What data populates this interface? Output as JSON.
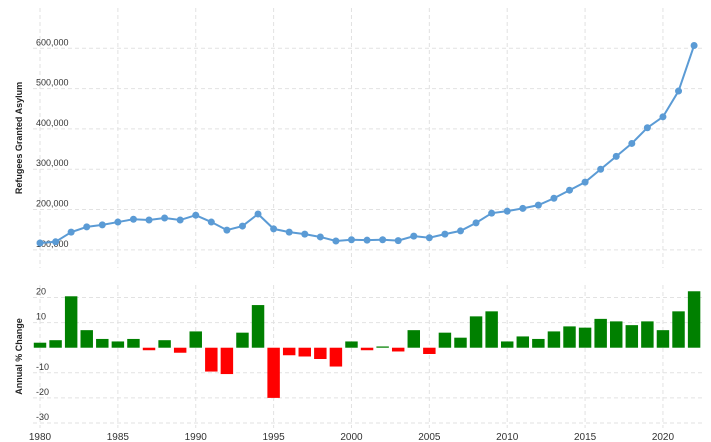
{
  "chart_data": [
    {
      "type": "line",
      "y_label": "Refugees Granted Asylum",
      "color": "#5b9bd5",
      "x": [
        1980,
        1981,
        1982,
        1983,
        1984,
        1985,
        1986,
        1987,
        1988,
        1989,
        1990,
        1991,
        1992,
        1993,
        1994,
        1995,
        1996,
        1997,
        1998,
        1999,
        2000,
        2001,
        2002,
        2003,
        2004,
        2005,
        2006,
        2007,
        2008,
        2009,
        2010,
        2011,
        2012,
        2013,
        2014,
        2015,
        2016,
        2017,
        2018,
        2019,
        2020,
        2021,
        2022
      ],
      "values": [
        117000,
        120000,
        144000,
        157000,
        162000,
        169000,
        176000,
        174000,
        179000,
        174000,
        186000,
        169000,
        149000,
        159000,
        189000,
        152000,
        144000,
        139000,
        132000,
        122000,
        125000,
        124000,
        125000,
        123000,
        134000,
        130000,
        139000,
        147000,
        167000,
        191000,
        196000,
        203000,
        211000,
        228000,
        248000,
        268000,
        300000,
        332000,
        364000,
        403000,
        430000,
        494000,
        607000
      ],
      "xlim": [
        1979.55,
        2022.7
      ],
      "ylim": [
        55000,
        700000
      ],
      "yticks": [
        {
          "value": 100000,
          "label": "100,000"
        },
        {
          "value": 200000,
          "label": "200,000"
        },
        {
          "value": 300000,
          "label": "300,000"
        },
        {
          "value": 400000,
          "label": "400,000"
        },
        {
          "value": 500000,
          "label": "500,000"
        },
        {
          "value": 600000,
          "label": "600,000"
        }
      ],
      "grid": true
    },
    {
      "type": "bar",
      "y_label": "Annual % Change",
      "positive_color": "#008000",
      "negative_color": "#ff0000",
      "x": [
        1980,
        1981,
        1982,
        1983,
        1984,
        1985,
        1986,
        1987,
        1988,
        1989,
        1990,
        1991,
        1992,
        1993,
        1994,
        1995,
        1996,
        1997,
        1998,
        1999,
        2000,
        2001,
        2002,
        2003,
        2004,
        2005,
        2006,
        2007,
        2008,
        2009,
        2010,
        2011,
        2012,
        2013,
        2014,
        2015,
        2016,
        2017,
        2018,
        2019,
        2020,
        2021,
        2022
      ],
      "values": [
        2,
        3,
        20.5,
        7,
        3.5,
        2.5,
        3.5,
        -1,
        3,
        -2,
        6.5,
        -9.5,
        -10.5,
        6,
        17,
        -20,
        -3,
        -3.5,
        -4.5,
        -7.5,
        2.5,
        -1,
        0.5,
        -1.5,
        7,
        -2.5,
        6,
        4,
        12.5,
        14.5,
        2.5,
        4.5,
        3.5,
        6.5,
        8.5,
        8,
        11.5,
        10.5,
        9,
        10.5,
        7,
        14.5,
        22.5
      ],
      "xlim": [
        1979.55,
        2022.7
      ],
      "ylim": [
        -32,
        25
      ],
      "xticks": [
        1980,
        1985,
        1990,
        1995,
        2000,
        2005,
        2010,
        2015,
        2020
      ],
      "yticks": [
        -30,
        -20,
        -10,
        10,
        20
      ],
      "grid": true
    }
  ]
}
